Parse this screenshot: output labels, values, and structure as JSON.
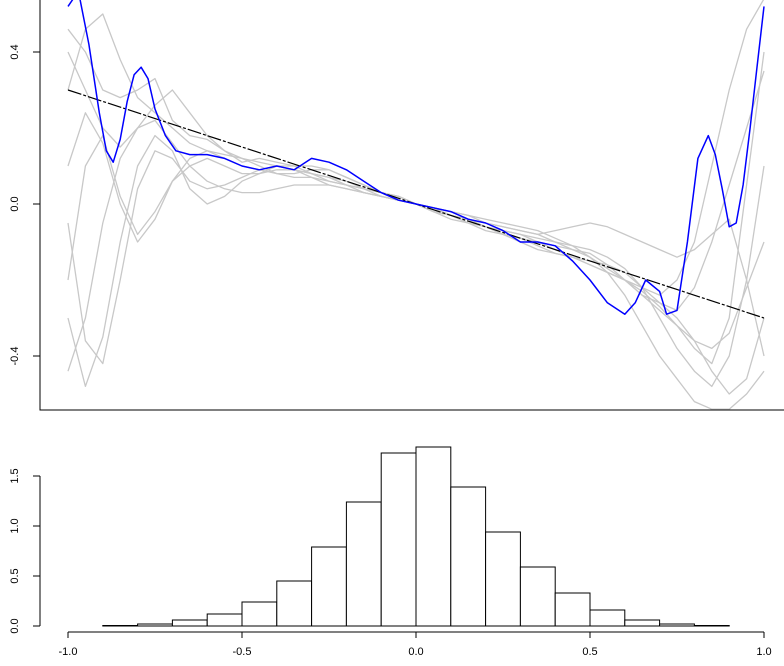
{
  "chart_data": [
    {
      "type": "line",
      "title": "",
      "xlabel": "",
      "ylabel": "",
      "xlim": [
        -1.0,
        1.05
      ],
      "ylim": [
        -0.54,
        0.54
      ],
      "yticks": [
        -0.4,
        0.0,
        0.4
      ],
      "ytick_labels": [
        "-0.4",
        "0.0",
        "0.4"
      ],
      "grid": false,
      "colors": {
        "fit": "#0000ff",
        "true": "#000000",
        "bootstrap": "#c8c8c8"
      },
      "series": [
        {
          "role": "true-line",
          "x": [
            -1.0,
            1.0
          ],
          "y": [
            0.3,
            -0.3
          ]
        },
        {
          "role": "fitted-curve",
          "x": [
            -1.0,
            -0.97,
            -0.94,
            -0.91,
            -0.89,
            -0.87,
            -0.85,
            -0.83,
            -0.81,
            -0.79,
            -0.77,
            -0.75,
            -0.72,
            -0.69,
            -0.65,
            -0.6,
            -0.55,
            -0.5,
            -0.45,
            -0.4,
            -0.35,
            -0.3,
            -0.25,
            -0.2,
            -0.15,
            -0.1,
            -0.05,
            0.0,
            0.05,
            0.1,
            0.15,
            0.2,
            0.25,
            0.3,
            0.35,
            0.4,
            0.45,
            0.5,
            0.55,
            0.6,
            0.63,
            0.66,
            0.7,
            0.72,
            0.75,
            0.78,
            0.81,
            0.84,
            0.86,
            0.88,
            0.9,
            0.92,
            0.94,
            0.96,
            0.98,
            1.0
          ],
          "y": [
            0.52,
            0.56,
            0.42,
            0.24,
            0.14,
            0.11,
            0.17,
            0.27,
            0.34,
            0.36,
            0.33,
            0.25,
            0.18,
            0.14,
            0.13,
            0.13,
            0.12,
            0.1,
            0.09,
            0.1,
            0.09,
            0.12,
            0.11,
            0.09,
            0.06,
            0.03,
            0.01,
            0.0,
            -0.01,
            -0.02,
            -0.04,
            -0.05,
            -0.07,
            -0.1,
            -0.1,
            -0.11,
            -0.15,
            -0.2,
            -0.26,
            -0.29,
            -0.26,
            -0.2,
            -0.23,
            -0.29,
            -0.28,
            -0.1,
            0.12,
            0.18,
            0.13,
            0.04,
            -0.06,
            -0.05,
            0.05,
            0.2,
            0.36,
            0.52
          ]
        },
        {
          "role": "bootstrap-curve",
          "x": [
            -1.0,
            -0.95,
            -0.9,
            -0.85,
            -0.8,
            -0.75,
            -0.7,
            -0.65,
            -0.6,
            -0.55,
            -0.5,
            -0.45,
            -0.4,
            -0.35,
            -0.3,
            -0.25,
            -0.2,
            -0.15,
            -0.1,
            -0.05,
            0.0,
            0.05,
            0.1,
            0.15,
            0.2,
            0.25,
            0.3,
            0.35,
            0.4,
            0.45,
            0.5,
            0.55,
            0.6,
            0.65,
            0.7,
            0.75,
            0.8,
            0.85,
            0.9,
            0.95,
            1.0
          ],
          "y": [
            0.46,
            0.4,
            0.3,
            0.28,
            0.3,
            0.33,
            0.22,
            0.18,
            0.17,
            0.14,
            0.11,
            0.12,
            0.11,
            0.1,
            0.1,
            0.09,
            0.07,
            0.05,
            0.03,
            0.02,
            0.0,
            -0.01,
            -0.03,
            -0.04,
            -0.06,
            -0.07,
            -0.08,
            -0.1,
            -0.11,
            -0.12,
            -0.13,
            -0.16,
            -0.2,
            -0.24,
            -0.26,
            -0.28,
            -0.22,
            -0.1,
            0.05,
            0.2,
            0.35
          ]
        },
        {
          "role": "bootstrap-curve",
          "x": [
            -1.0,
            -0.95,
            -0.9,
            -0.85,
            -0.8,
            -0.75,
            -0.7,
            -0.65,
            -0.6,
            -0.55,
            -0.5,
            -0.45,
            -0.4,
            -0.35,
            -0.3,
            -0.25,
            -0.2,
            -0.15,
            -0.1,
            -0.05,
            0.0,
            0.05,
            0.1,
            0.15,
            0.2,
            0.25,
            0.3,
            0.35,
            0.4,
            0.45,
            0.5,
            0.55,
            0.6,
            0.65,
            0.7,
            0.75,
            0.8,
            0.85,
            0.9,
            0.95,
            1.0
          ],
          "y": [
            -0.44,
            -0.3,
            -0.05,
            0.12,
            0.2,
            0.22,
            0.16,
            0.1,
            0.06,
            0.04,
            0.03,
            0.03,
            0.04,
            0.05,
            0.05,
            0.05,
            0.04,
            0.03,
            0.02,
            0.01,
            0.0,
            -0.01,
            -0.02,
            -0.03,
            -0.04,
            -0.05,
            -0.06,
            -0.07,
            -0.09,
            -0.11,
            -0.14,
            -0.18,
            -0.24,
            -0.32,
            -0.4,
            -0.46,
            -0.52,
            -0.54,
            -0.54,
            -0.5,
            -0.44
          ]
        },
        {
          "role": "bootstrap-curve",
          "x": [
            -1.0,
            -0.95,
            -0.9,
            -0.85,
            -0.8,
            -0.75,
            -0.7,
            -0.65,
            -0.6,
            -0.55,
            -0.5,
            -0.45,
            -0.4,
            -0.35,
            -0.3,
            -0.25,
            -0.2,
            -0.15,
            -0.1,
            -0.05,
            0.0,
            0.05,
            0.1,
            0.15,
            0.2,
            0.25,
            0.3,
            0.35,
            0.4,
            0.45,
            0.5,
            0.55,
            0.6,
            0.65,
            0.7,
            0.75,
            0.8,
            0.85,
            0.9,
            0.95,
            1.0
          ],
          "y": [
            -0.3,
            -0.48,
            -0.35,
            -0.1,
            0.1,
            0.18,
            0.14,
            0.04,
            0.0,
            0.02,
            0.06,
            0.08,
            0.1,
            0.09,
            0.07,
            0.05,
            0.04,
            0.03,
            0.02,
            0.01,
            0.0,
            -0.02,
            -0.04,
            -0.05,
            -0.07,
            -0.08,
            -0.09,
            -0.11,
            -0.13,
            -0.14,
            -0.15,
            -0.16,
            -0.18,
            -0.22,
            -0.26,
            -0.3,
            -0.36,
            -0.44,
            -0.5,
            -0.46,
            -0.3
          ]
        },
        {
          "role": "bootstrap-curve",
          "x": [
            -1.0,
            -0.95,
            -0.9,
            -0.85,
            -0.8,
            -0.75,
            -0.7,
            -0.65,
            -0.6,
            -0.55,
            -0.5,
            -0.45,
            -0.4,
            -0.35,
            -0.3,
            -0.25,
            -0.2,
            -0.15,
            -0.1,
            -0.05,
            0.0,
            0.05,
            0.1,
            0.15,
            0.2,
            0.25,
            0.3,
            0.35,
            0.4,
            0.45,
            0.5,
            0.55,
            0.6,
            0.65,
            0.7,
            0.75,
            0.8,
            0.85,
            0.9,
            0.95,
            1.0
          ],
          "y": [
            -0.05,
            -0.36,
            -0.42,
            -0.2,
            0.04,
            0.14,
            0.12,
            0.06,
            0.04,
            0.05,
            0.07,
            0.09,
            0.1,
            0.1,
            0.08,
            0.06,
            0.05,
            0.03,
            0.02,
            0.01,
            0.0,
            -0.01,
            -0.02,
            -0.04,
            -0.05,
            -0.07,
            -0.08,
            -0.09,
            -0.1,
            -0.11,
            -0.12,
            -0.14,
            -0.17,
            -0.22,
            -0.3,
            -0.38,
            -0.44,
            -0.48,
            -0.4,
            -0.2,
            0.1
          ]
        },
        {
          "role": "bootstrap-curve",
          "x": [
            -1.0,
            -0.95,
            -0.9,
            -0.85,
            -0.8,
            -0.75,
            -0.7,
            -0.65,
            -0.6,
            -0.55,
            -0.5,
            -0.45,
            -0.4,
            -0.35,
            -0.3,
            -0.25,
            -0.2,
            -0.15,
            -0.1,
            -0.05,
            0.0,
            0.05,
            0.1,
            0.15,
            0.2,
            0.25,
            0.3,
            0.35,
            0.4,
            0.45,
            0.5,
            0.55,
            0.6,
            0.65,
            0.7,
            0.75,
            0.8,
            0.85,
            0.9,
            0.95,
            1.0
          ],
          "y": [
            -0.2,
            0.1,
            0.18,
            0.02,
            -0.08,
            -0.02,
            0.06,
            0.1,
            0.12,
            0.1,
            0.08,
            0.08,
            0.09,
            0.09,
            0.08,
            0.07,
            0.05,
            0.04,
            0.02,
            0.01,
            0.0,
            -0.01,
            -0.03,
            -0.04,
            -0.06,
            -0.08,
            -0.1,
            -0.12,
            -0.13,
            -0.14,
            -0.16,
            -0.18,
            -0.2,
            -0.23,
            -0.27,
            -0.32,
            -0.38,
            -0.42,
            -0.3,
            0.05,
            0.4
          ]
        },
        {
          "role": "bootstrap-curve",
          "x": [
            -1.0,
            -0.95,
            -0.9,
            -0.85,
            -0.8,
            -0.75,
            -0.7,
            -0.65,
            -0.6,
            -0.55,
            -0.5,
            -0.45,
            -0.4,
            -0.35,
            -0.3,
            -0.25,
            -0.2,
            -0.15,
            -0.1,
            -0.05,
            0.0,
            0.05,
            0.1,
            0.15,
            0.2,
            0.25,
            0.3,
            0.35,
            0.4,
            0.45,
            0.5,
            0.55,
            0.6,
            0.65,
            0.7,
            0.75,
            0.8,
            0.85,
            0.9,
            0.95,
            1.0
          ],
          "y": [
            0.3,
            0.46,
            0.5,
            0.38,
            0.28,
            0.24,
            0.2,
            0.16,
            0.14,
            0.13,
            0.12,
            0.11,
            0.1,
            0.09,
            0.08,
            0.07,
            0.06,
            0.04,
            0.03,
            0.01,
            0.0,
            -0.02,
            -0.03,
            -0.05,
            -0.06,
            -0.08,
            -0.09,
            -0.1,
            -0.12,
            -0.14,
            -0.16,
            -0.18,
            -0.2,
            -0.22,
            -0.24,
            -0.2,
            -0.1,
            0.1,
            0.3,
            0.46,
            0.54
          ]
        },
        {
          "role": "bootstrap-curve",
          "x": [
            -1.0,
            -0.95,
            -0.9,
            -0.85,
            -0.8,
            -0.75,
            -0.7,
            -0.65,
            -0.6,
            -0.55,
            -0.5,
            -0.45,
            -0.4,
            -0.35,
            -0.3,
            -0.25,
            -0.2,
            -0.15,
            -0.1,
            -0.05,
            0.0,
            0.05,
            0.1,
            0.15,
            0.2,
            0.25,
            0.3,
            0.35,
            0.4,
            0.45,
            0.5,
            0.55,
            0.6,
            0.65,
            0.7,
            0.75,
            0.8,
            0.85,
            0.9,
            0.95,
            1.0
          ],
          "y": [
            0.4,
            0.3,
            0.2,
            0.15,
            0.2,
            0.26,
            0.3,
            0.24,
            0.18,
            0.14,
            0.12,
            0.1,
            0.08,
            0.08,
            0.09,
            0.09,
            0.07,
            0.05,
            0.03,
            0.02,
            0.0,
            -0.01,
            -0.02,
            -0.03,
            -0.05,
            -0.06,
            -0.07,
            -0.08,
            -0.07,
            -0.06,
            -0.05,
            -0.06,
            -0.08,
            -0.1,
            -0.12,
            -0.14,
            -0.12,
            -0.08,
            -0.04,
            -0.2,
            -0.4
          ]
        },
        {
          "role": "bootstrap-curve",
          "x": [
            -1.0,
            -0.95,
            -0.9,
            -0.85,
            -0.8,
            -0.75,
            -0.7,
            -0.65,
            -0.6,
            -0.55,
            -0.5,
            -0.45,
            -0.4,
            -0.35,
            -0.3,
            -0.25,
            -0.2,
            -0.15,
            -0.1,
            -0.05,
            0.0,
            0.05,
            0.1,
            0.15,
            0.2,
            0.25,
            0.3,
            0.35,
            0.4,
            0.45,
            0.5,
            0.55,
            0.6,
            0.65,
            0.7,
            0.75,
            0.8,
            0.85,
            0.9,
            0.95,
            1.0
          ],
          "y": [
            0.1,
            0.24,
            0.16,
            0.0,
            -0.1,
            -0.04,
            0.06,
            0.12,
            0.14,
            0.12,
            0.1,
            0.09,
            0.08,
            0.07,
            0.07,
            0.06,
            0.05,
            0.04,
            0.03,
            0.02,
            0.0,
            -0.02,
            -0.03,
            -0.04,
            -0.05,
            -0.06,
            -0.07,
            -0.08,
            -0.1,
            -0.12,
            -0.14,
            -0.17,
            -0.2,
            -0.24,
            -0.28,
            -0.32,
            -0.36,
            -0.38,
            -0.34,
            -0.22,
            -0.1
          ]
        }
      ]
    },
    {
      "type": "bar",
      "subtype": "histogram",
      "title": "",
      "xlabel": "",
      "ylabel": "",
      "bin_edges": [
        -0.9,
        -0.8,
        -0.7,
        -0.6,
        -0.5,
        -0.4,
        -0.3,
        -0.2,
        -0.1,
        0.0,
        0.1,
        0.2,
        0.3,
        0.4,
        0.5,
        0.6,
        0.7,
        0.8,
        0.9
      ],
      "values": [
        0.005,
        0.02,
        0.06,
        0.12,
        0.24,
        0.45,
        0.79,
        1.24,
        1.73,
        1.79,
        1.39,
        0.94,
        0.59,
        0.33,
        0.16,
        0.06,
        0.02,
        0.005
      ],
      "xlim": [
        -1.0,
        1.0
      ],
      "ylim": [
        0,
        1.8
      ],
      "xticks": [
        -1.0,
        -0.5,
        0.0,
        0.5,
        1.0
      ],
      "xtick_labels": [
        "-1.0",
        "-0.5",
        "0.0",
        "0.5",
        "1.0"
      ],
      "yticks": [
        0.0,
        0.5,
        1.0,
        1.5
      ],
      "ytick_labels": [
        "0.0",
        "0.5",
        "1.0",
        "1.5"
      ],
      "grid": false,
      "colors": {
        "fill": "#ffffff",
        "stroke": "#000000"
      }
    }
  ]
}
